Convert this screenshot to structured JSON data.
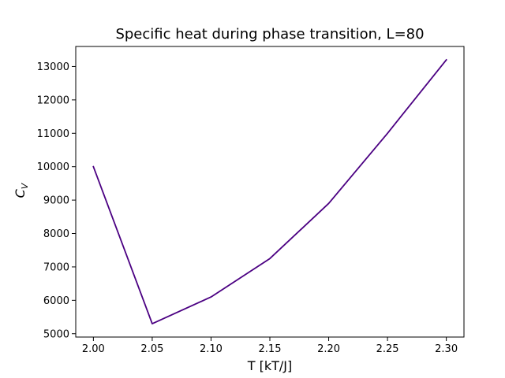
{
  "chart_data": {
    "type": "line",
    "title": "Specific heat during phase transition, L=80",
    "xlabel": "T [kT/J]",
    "ylabel": "C_V",
    "xlim": [
      1.985,
      2.315
    ],
    "ylim": [
      4900,
      13600
    ],
    "x_ticks": [
      2.0,
      2.05,
      2.1,
      2.15,
      2.2,
      2.25,
      2.3
    ],
    "x_tick_labels": [
      "2.00",
      "2.05",
      "2.10",
      "2.15",
      "2.20",
      "2.25",
      "2.30"
    ],
    "y_ticks": [
      5000,
      6000,
      7000,
      8000,
      9000,
      10000,
      11000,
      12000,
      13000
    ],
    "y_tick_labels": [
      "5000",
      "6000",
      "7000",
      "8000",
      "9000",
      "10000",
      "11000",
      "12000",
      "13000"
    ],
    "grid": false,
    "series": [
      {
        "color": "#4b0082",
        "x": [
          2.0,
          2.05,
          2.1,
          2.15,
          2.2,
          2.25,
          2.3
        ],
        "y": [
          10000,
          5300,
          6100,
          7250,
          8900,
          11000,
          13200
        ]
      }
    ]
  }
}
